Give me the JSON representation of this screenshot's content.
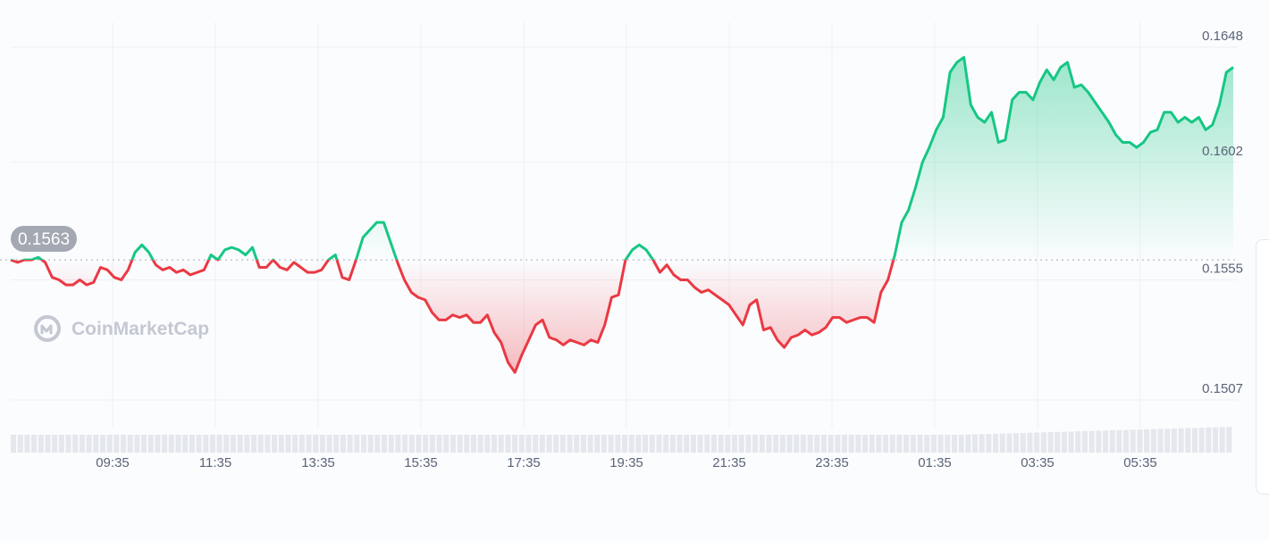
{
  "chart_data": {
    "type": "line",
    "x_ticks": [
      "09:35",
      "11:35",
      "13:35",
      "15:35",
      "17:35",
      "19:35",
      "21:35",
      "23:35",
      "01:35",
      "03:35",
      "05:35"
    ],
    "y_ticks": [
      "0.1648",
      "0.1602",
      "0.1555",
      "0.1507"
    ],
    "ylim": [
      0.1507,
      0.1648
    ],
    "reference_value": 0.1563,
    "reference_label": "0.1563",
    "watermark": "CoinMarketCap",
    "grid": true,
    "up_color": "#16c784",
    "down_color": "#ea3943",
    "series": [
      {
        "values": [
          0.1563,
          0.1562,
          0.1563,
          0.1563,
          0.1564,
          0.1562,
          0.1556,
          0.1555,
          0.1553,
          0.1553,
          0.1555,
          0.1553,
          0.1554,
          0.156,
          0.1559,
          0.1556,
          0.1555,
          0.1559,
          0.1566,
          0.1569,
          0.1566,
          0.1561,
          0.1559,
          0.156,
          0.1558,
          0.1559,
          0.1557,
          0.1558,
          0.1559,
          0.1565,
          0.1563,
          0.1567,
          0.1568,
          0.1567,
          0.1565,
          0.1568,
          0.156,
          0.156,
          0.1563,
          0.156,
          0.1559,
          0.1562,
          0.156,
          0.1558,
          0.1558,
          0.1559,
          0.1563,
          0.1565,
          0.1556,
          0.1555,
          0.1563,
          0.1572,
          0.1575,
          0.1578,
          0.1578,
          0.157,
          0.1562,
          0.1555,
          0.155,
          0.1548,
          0.1547,
          0.1542,
          0.1539,
          0.1539,
          0.1541,
          0.154,
          0.1541,
          0.1538,
          0.1538,
          0.1541,
          0.1534,
          0.153,
          0.1522,
          0.1518,
          0.1525,
          0.1531,
          0.1537,
          0.1539,
          0.1532,
          0.1531,
          0.1529,
          0.1531,
          0.153,
          0.1529,
          0.1531,
          0.153,
          0.1537,
          0.1548,
          0.1549,
          0.1563,
          0.1567,
          0.1569,
          0.1567,
          0.1563,
          0.1558,
          0.1561,
          0.1557,
          0.1555,
          0.1555,
          0.1552,
          0.155,
          0.1551,
          0.1549,
          0.1547,
          0.1545,
          0.1541,
          0.1537,
          0.1545,
          0.1547,
          0.1535,
          0.1536,
          0.1531,
          0.1528,
          0.1532,
          0.1533,
          0.1535,
          0.1533,
          0.1534,
          0.1536,
          0.154,
          0.154,
          0.1538,
          0.1539,
          0.154,
          0.154,
          0.1538,
          0.155,
          0.1555,
          0.1565,
          0.1578,
          0.1583,
          0.1592,
          0.1602,
          0.1608,
          0.1615,
          0.162,
          0.1638,
          0.1642,
          0.1644,
          0.1625,
          0.162,
          0.1618,
          0.1622,
          0.161,
          0.1611,
          0.1627,
          0.163,
          0.163,
          0.1627,
          0.1634,
          0.1639,
          0.1635,
          0.164,
          0.1642,
          0.1632,
          0.1633,
          0.163,
          0.1626,
          0.1622,
          0.1618,
          0.1613,
          0.161,
          0.161,
          0.1608,
          0.161,
          0.1614,
          0.1615,
          0.1622,
          0.1622,
          0.1618,
          0.162,
          0.1618,
          0.162,
          0.1615,
          0.1617,
          0.1625,
          0.1638,
          0.164
        ]
      }
    ]
  }
}
